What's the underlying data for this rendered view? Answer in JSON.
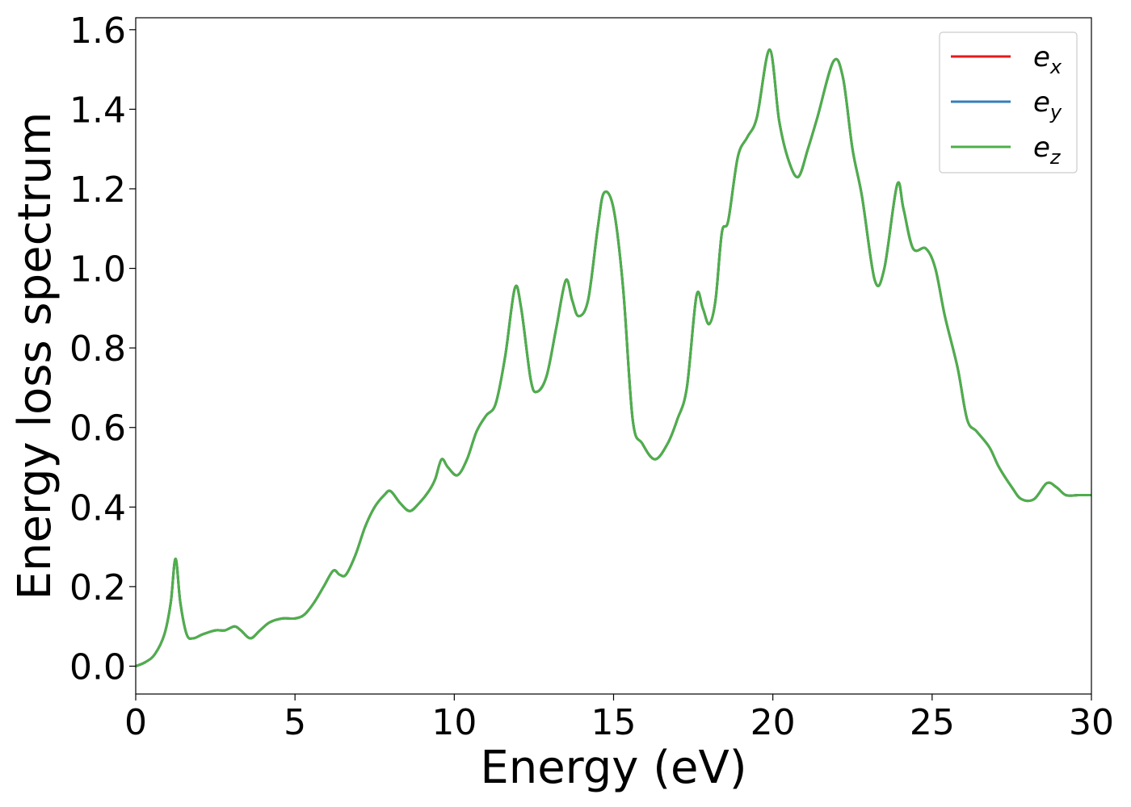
{
  "chart_data": {
    "type": "line",
    "xlabel": "Energy (eV)",
    "ylabel": "Energy loss spectrum",
    "xlim": [
      0,
      30
    ],
    "ylim": [
      -0.07,
      1.63
    ],
    "xticks": [
      0,
      5,
      10,
      15,
      20,
      25,
      30
    ],
    "yticks": [
      0.0,
      0.2,
      0.4,
      0.6,
      0.8,
      1.0,
      1.2,
      1.4,
      1.6
    ],
    "xtick_labels": [
      "0",
      "5",
      "10",
      "15",
      "20",
      "25",
      "30"
    ],
    "ytick_labels": [
      "0.0",
      "0.2",
      "0.4",
      "0.6",
      "0.8",
      "1.0",
      "1.2",
      "1.4",
      "1.6"
    ],
    "grid": false,
    "legend_position": "top-right",
    "series": [
      {
        "name": "e",
        "subscript": "x",
        "color": "#e41a1c"
      },
      {
        "name": "e",
        "subscript": "y",
        "color": "#377eb8"
      },
      {
        "name": "e",
        "subscript": "z",
        "color": "#4daf4a"
      }
    ],
    "x": [
      0,
      0.3,
      0.6,
      0.9,
      1.1,
      1.25,
      1.4,
      1.6,
      1.8,
      2.1,
      2.5,
      2.8,
      3.1,
      3.3,
      3.6,
      3.9,
      4.2,
      4.6,
      5.0,
      5.3,
      5.6,
      5.9,
      6.2,
      6.4,
      6.6,
      6.9,
      7.2,
      7.5,
      7.8,
      8.0,
      8.3,
      8.6,
      8.9,
      9.2,
      9.4,
      9.6,
      9.8,
      10.1,
      10.4,
      10.7,
      11.0,
      11.3,
      11.6,
      11.9,
      12.1,
      12.4,
      12.6,
      12.9,
      13.2,
      13.5,
      13.7,
      13.9,
      14.2,
      14.5,
      14.7,
      15.0,
      15.3,
      15.6,
      15.9,
      16.3,
      16.7,
      17.0,
      17.3,
      17.6,
      17.8,
      18.0,
      18.2,
      18.4,
      18.6,
      18.9,
      19.2,
      19.5,
      19.9,
      20.2,
      20.5,
      20.8,
      21.1,
      21.4,
      21.9,
      22.2,
      22.5,
      22.8,
      23.2,
      23.5,
      23.9,
      24.1,
      24.4,
      24.8,
      25.1,
      25.4,
      25.8,
      26.1,
      26.4,
      26.8,
      27.1,
      27.5,
      27.8,
      28.2,
      28.6,
      28.9,
      29.2,
      29.6,
      30.0
    ],
    "values": [
      0.0,
      0.01,
      0.03,
      0.08,
      0.16,
      0.27,
      0.16,
      0.08,
      0.07,
      0.08,
      0.09,
      0.09,
      0.1,
      0.09,
      0.07,
      0.09,
      0.11,
      0.12,
      0.12,
      0.13,
      0.16,
      0.2,
      0.24,
      0.23,
      0.23,
      0.28,
      0.35,
      0.4,
      0.43,
      0.44,
      0.41,
      0.39,
      0.41,
      0.44,
      0.47,
      0.52,
      0.5,
      0.48,
      0.52,
      0.59,
      0.63,
      0.66,
      0.78,
      0.95,
      0.9,
      0.72,
      0.69,
      0.73,
      0.85,
      0.97,
      0.92,
      0.88,
      0.92,
      1.1,
      1.19,
      1.15,
      0.95,
      0.62,
      0.56,
      0.52,
      0.56,
      0.62,
      0.7,
      0.93,
      0.9,
      0.86,
      0.92,
      1.09,
      1.12,
      1.28,
      1.33,
      1.38,
      1.55,
      1.37,
      1.27,
      1.23,
      1.3,
      1.38,
      1.52,
      1.48,
      1.3,
      1.18,
      0.97,
      1.0,
      1.21,
      1.15,
      1.05,
      1.05,
      1.0,
      0.88,
      0.75,
      0.62,
      0.59,
      0.55,
      0.5,
      0.45,
      0.42,
      0.42,
      0.46,
      0.45,
      0.43,
      0.43,
      0.43
    ]
  }
}
